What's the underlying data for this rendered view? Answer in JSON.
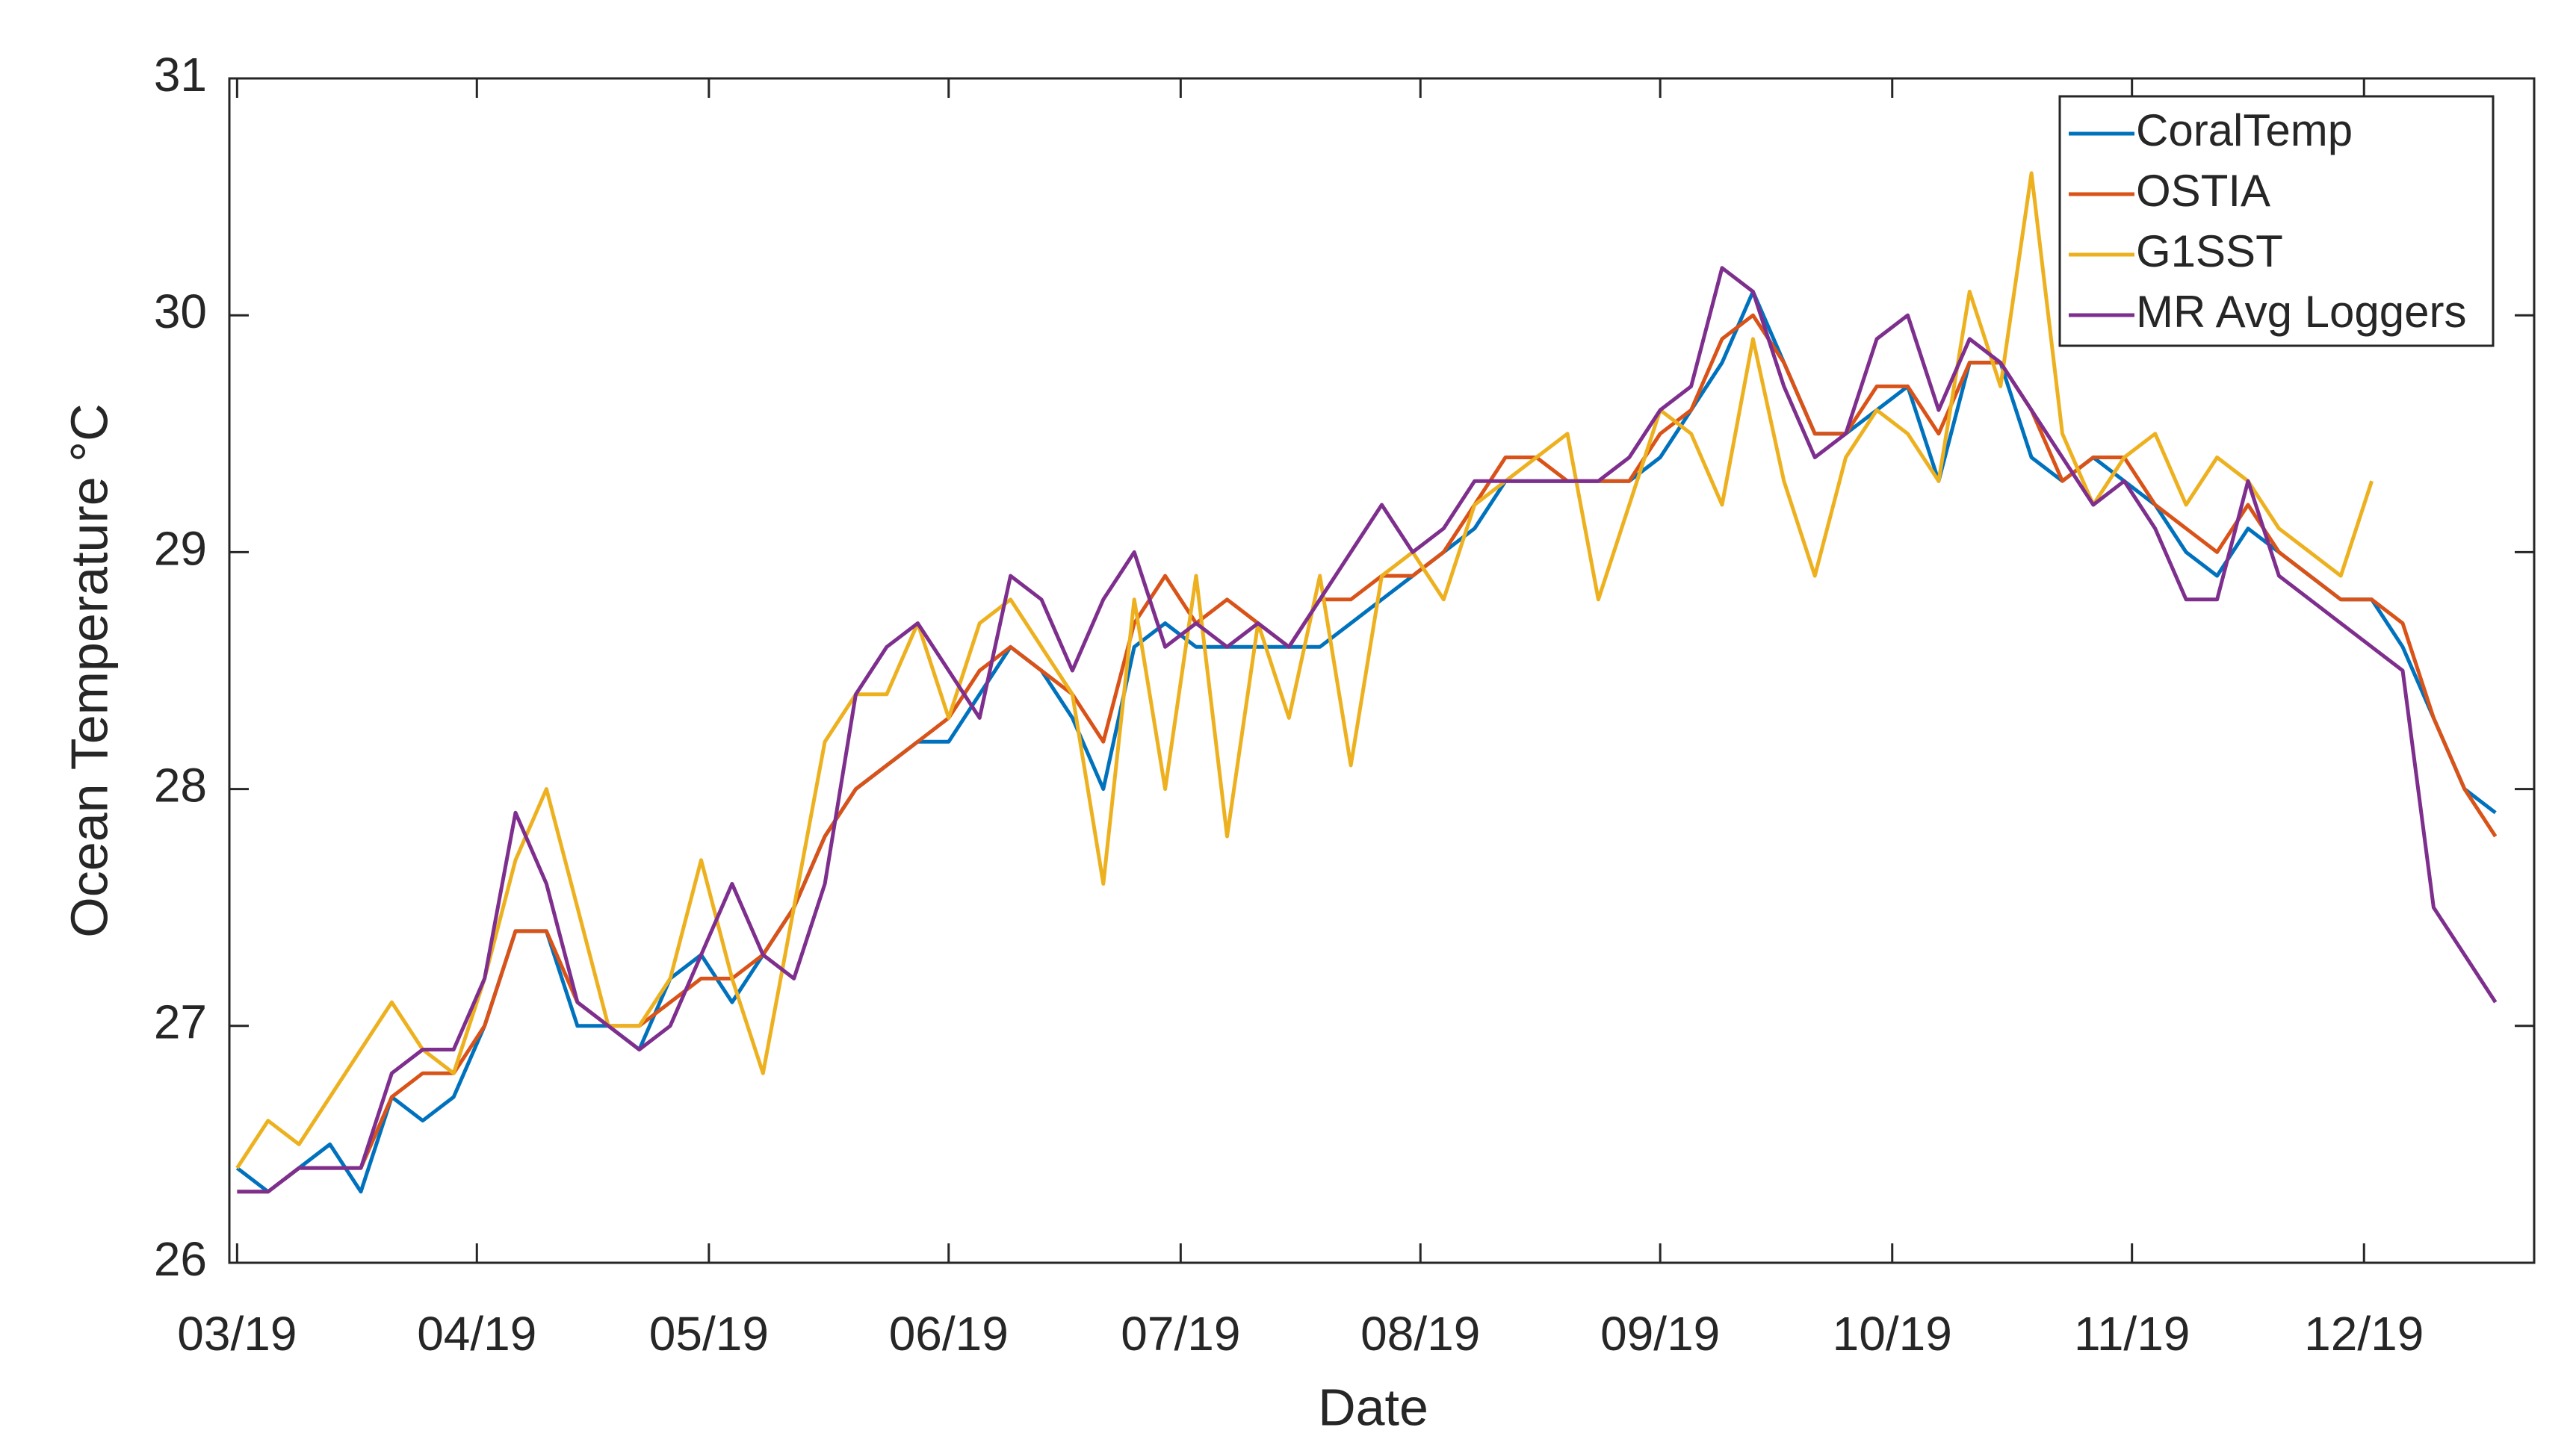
{
  "chart_data": {
    "type": "line",
    "xlabel": "Date",
    "ylabel": "Ocean Temperature °C",
    "x": [
      0,
      4,
      8,
      12,
      16,
      20,
      24,
      28,
      32,
      36,
      40,
      44,
      48,
      52,
      56,
      60,
      64,
      68,
      72,
      76,
      80,
      84,
      88,
      92,
      96,
      100,
      104,
      108,
      112,
      116,
      120,
      124,
      128,
      132,
      136,
      140,
      144,
      148,
      152,
      156,
      160,
      164,
      168,
      172,
      176,
      180,
      184,
      188,
      192,
      196,
      200,
      204,
      208,
      212,
      216,
      220,
      224,
      228,
      232,
      236,
      240,
      244,
      248,
      252,
      256,
      260,
      264,
      268,
      272,
      276,
      280,
      284,
      288,
      292
    ],
    "series": [
      {
        "name": "CoralTemp",
        "color": "#0072BD",
        "values": [
          26.4,
          26.3,
          26.4,
          26.5,
          26.3,
          26.7,
          26.6,
          26.7,
          27.0,
          27.4,
          27.4,
          27.0,
          27.0,
          26.9,
          27.2,
          27.3,
          27.1,
          27.3,
          27.5,
          27.8,
          28.0,
          28.1,
          28.2,
          28.2,
          28.4,
          28.6,
          28.5,
          28.3,
          28.0,
          28.6,
          28.7,
          28.6,
          28.6,
          28.6,
          28.6,
          28.6,
          28.7,
          28.8,
          28.9,
          29.0,
          29.1,
          29.3,
          29.3,
          29.3,
          29.3,
          29.3,
          29.4,
          29.6,
          29.8,
          30.1,
          29.8,
          29.5,
          29.5,
          29.6,
          29.7,
          29.3,
          29.8,
          29.8,
          29.4,
          29.3,
          29.4,
          29.3,
          29.2,
          29.0,
          28.9,
          29.1,
          29.0,
          28.9,
          28.8,
          28.8,
          28.6,
          28.3,
          28.0,
          27.9
        ]
      },
      {
        "name": "OSTIA",
        "color": "#D95319",
        "values": [
          26.3,
          26.3,
          26.4,
          26.4,
          26.4,
          26.7,
          26.8,
          26.8,
          27.0,
          27.4,
          27.4,
          27.1,
          27.0,
          27.0,
          27.1,
          27.2,
          27.2,
          27.3,
          27.5,
          27.8,
          28.0,
          28.1,
          28.2,
          28.3,
          28.5,
          28.6,
          28.5,
          28.4,
          28.2,
          28.7,
          28.9,
          28.7,
          28.8,
          28.7,
          28.6,
          28.8,
          28.8,
          28.9,
          28.9,
          29.0,
          29.2,
          29.4,
          29.4,
          29.3,
          29.3,
          29.3,
          29.5,
          29.6,
          29.9,
          30.0,
          29.8,
          29.5,
          29.5,
          29.7,
          29.7,
          29.5,
          29.8,
          29.8,
          29.6,
          29.3,
          29.4,
          29.4,
          29.2,
          29.1,
          29.0,
          29.2,
          29.0,
          28.9,
          28.8,
          28.8,
          28.7,
          28.3,
          28.0,
          27.8
        ]
      },
      {
        "name": "G1SST",
        "color": "#EDB120",
        "values": [
          26.4,
          26.6,
          26.5,
          26.7,
          26.9,
          27.1,
          26.9,
          26.8,
          27.2,
          27.7,
          28.0,
          27.5,
          27.0,
          27.0,
          27.2,
          27.7,
          27.2,
          26.8,
          27.5,
          28.2,
          28.4,
          28.4,
          28.7,
          28.3,
          28.7,
          28.8,
          28.6,
          28.4,
          27.6,
          28.8,
          28.0,
          28.9,
          27.8,
          28.7,
          28.3,
          28.9,
          28.1,
          28.9,
          29.0,
          28.8,
          29.2,
          29.3,
          29.4,
          29.5,
          28.8,
          29.2,
          29.6,
          29.5,
          29.2,
          29.9,
          29.3,
          28.9,
          29.4,
          29.6,
          29.5,
          29.3,
          30.1,
          29.7,
          30.6,
          29.5,
          29.2,
          29.4,
          29.5,
          29.2,
          29.4,
          29.3,
          29.1,
          29.0,
          28.9,
          29.3,
          null,
          null,
          null,
          null
        ]
      },
      {
        "name": "MR Avg Loggers",
        "color": "#7E2F8E",
        "values": [
          26.3,
          26.3,
          26.4,
          26.4,
          26.4,
          26.8,
          26.9,
          26.9,
          27.2,
          27.9,
          27.6,
          27.1,
          27.0,
          26.9,
          27.0,
          27.3,
          27.6,
          27.3,
          27.2,
          27.6,
          28.4,
          28.6,
          28.7,
          28.5,
          28.3,
          28.9,
          28.8,
          28.5,
          28.8,
          29.0,
          28.6,
          28.7,
          28.6,
          28.7,
          28.6,
          28.8,
          29.0,
          29.2,
          29.0,
          29.1,
          29.3,
          29.3,
          29.3,
          29.3,
          29.3,
          29.4,
          29.6,
          29.7,
          30.2,
          30.1,
          29.7,
          29.4,
          29.5,
          29.9,
          30.0,
          29.6,
          29.9,
          29.8,
          29.6,
          29.4,
          29.2,
          29.3,
          29.1,
          28.8,
          28.8,
          29.3,
          28.9,
          28.8,
          28.7,
          28.6,
          28.5,
          27.5,
          27.3,
          27.1
        ]
      }
    ],
    "xlim": [
      -1,
      297
    ],
    "xticks": [
      {
        "value": 0,
        "label": "03/19"
      },
      {
        "value": 31,
        "label": "04/19"
      },
      {
        "value": 61,
        "label": "05/19"
      },
      {
        "value": 92,
        "label": "06/19"
      },
      {
        "value": 122,
        "label": "07/19"
      },
      {
        "value": 153,
        "label": "08/19"
      },
      {
        "value": 184,
        "label": "09/19"
      },
      {
        "value": 214,
        "label": "10/19"
      },
      {
        "value": 245,
        "label": "11/19"
      },
      {
        "value": 275,
        "label": "12/19"
      }
    ],
    "ylim": [
      26,
      31
    ],
    "yticks": [
      26,
      27,
      28,
      29,
      30,
      31
    ],
    "grid": false,
    "legend": "northeast"
  }
}
